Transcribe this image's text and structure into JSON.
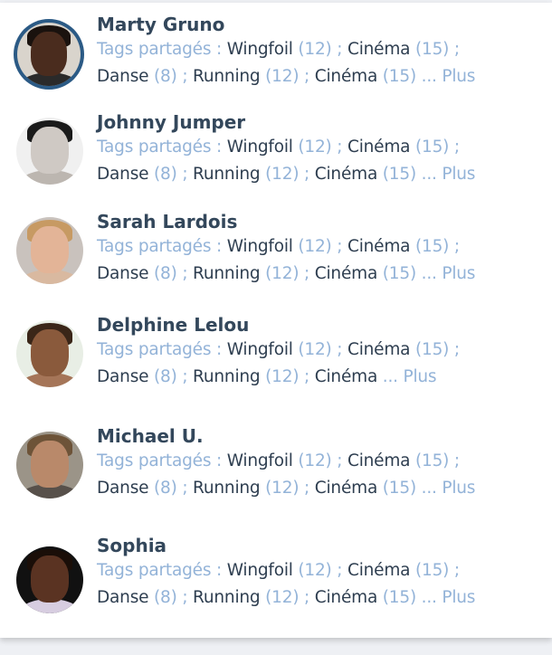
{
  "tags_label": "Tags partagés :",
  "more_label": "... Plus",
  "colors": {
    "name": "#33475b",
    "accent": "#93b3d8",
    "text": "#2e3e50",
    "ring": "#2b5a85"
  },
  "users": [
    {
      "name": "Marty Gruno",
      "selected": true,
      "tags": [
        {
          "name": "Wingfoil",
          "count": "(12)"
        },
        {
          "name": "Cinéma",
          "count": "(15)"
        },
        {
          "name": "Danse",
          "count": "(8)"
        },
        {
          "name": "Running",
          "count": "(12)"
        },
        {
          "name": "Cinéma",
          "count": "(15)"
        }
      ]
    },
    {
      "name": "Johnny Jumper",
      "tags": [
        {
          "name": "Wingfoil",
          "count": "(12)"
        },
        {
          "name": "Cinéma",
          "count": "(15)"
        },
        {
          "name": "Danse",
          "count": "(8)"
        },
        {
          "name": "Running",
          "count": "(12)"
        },
        {
          "name": "Cinéma",
          "count": "(15)"
        }
      ]
    },
    {
      "name": "Sarah Lardois",
      "tags": [
        {
          "name": "Wingfoil",
          "count": "(12)"
        },
        {
          "name": "Cinéma",
          "count": "(15)"
        },
        {
          "name": "Danse",
          "count": "(8)"
        },
        {
          "name": "Running",
          "count": "(12)"
        },
        {
          "name": "Cinéma",
          "count": "(15)"
        }
      ]
    },
    {
      "name": "Delphine Lelou",
      "tags": [
        {
          "name": "Wingfoil",
          "count": "(12)"
        },
        {
          "name": "Cinéma",
          "count": "(15)"
        },
        {
          "name": "Danse",
          "count": "(8)"
        },
        {
          "name": "Running",
          "count": "(12)"
        },
        {
          "name": "Cinéma",
          "count": ""
        }
      ]
    },
    {
      "name": "Michael U.",
      "tags": [
        {
          "name": "Wingfoil",
          "count": "(12)"
        },
        {
          "name": "Cinéma",
          "count": "(15)"
        },
        {
          "name": "Danse",
          "count": "(8)"
        },
        {
          "name": "Running",
          "count": "(12)"
        },
        {
          "name": "Cinéma",
          "count": "(15)"
        }
      ]
    },
    {
      "name": "Sophia",
      "tags": [
        {
          "name": "Wingfoil",
          "count": "(12)"
        },
        {
          "name": "Cinéma",
          "count": "(15)"
        },
        {
          "name": "Danse",
          "count": "(8)"
        },
        {
          "name": "Running",
          "count": "(12)"
        },
        {
          "name": "Cinéma",
          "count": "(15)"
        }
      ]
    }
  ]
}
